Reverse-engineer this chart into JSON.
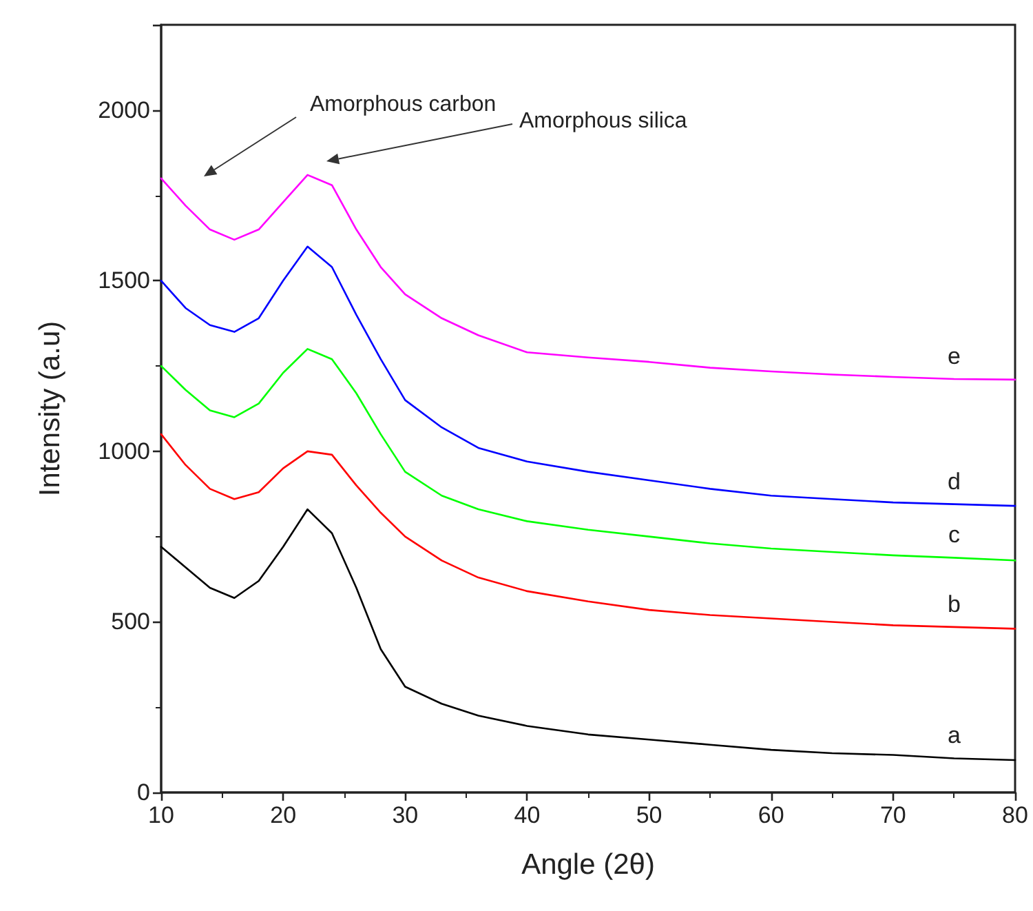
{
  "chart_data": {
    "type": "line",
    "xlabel": "Angle (2θ)",
    "ylabel": "Intensity (a.u)",
    "x": [
      10,
      12,
      14,
      16,
      18,
      20,
      22,
      24,
      26,
      28,
      30,
      33,
      36,
      40,
      45,
      50,
      55,
      60,
      65,
      70,
      75,
      80
    ],
    "series": [
      {
        "name": "a",
        "color": "#000000",
        "values": [
          720,
          660,
          600,
          570,
          620,
          720,
          830,
          760,
          600,
          420,
          310,
          260,
          225,
          195,
          170,
          155,
          140,
          125,
          115,
          110,
          100,
          95
        ]
      },
      {
        "name": "b",
        "color": "#ff0000",
        "values": [
          1050,
          960,
          890,
          860,
          880,
          950,
          1000,
          990,
          900,
          820,
          750,
          680,
          630,
          590,
          560,
          535,
          520,
          510,
          500,
          490,
          485,
          480
        ]
      },
      {
        "name": "c",
        "color": "#00ff00",
        "values": [
          1250,
          1180,
          1120,
          1100,
          1140,
          1230,
          1300,
          1270,
          1170,
          1050,
          940,
          870,
          830,
          795,
          770,
          750,
          730,
          715,
          705,
          695,
          688,
          680
        ]
      },
      {
        "name": "d",
        "color": "#0000ff",
        "values": [
          1500,
          1420,
          1370,
          1350,
          1390,
          1500,
          1600,
          1540,
          1400,
          1270,
          1150,
          1070,
          1010,
          970,
          940,
          915,
          890,
          870,
          860,
          850,
          845,
          840
        ]
      },
      {
        "name": "e",
        "color": "#ff00ff",
        "values": [
          1800,
          1720,
          1650,
          1620,
          1650,
          1730,
          1810,
          1780,
          1650,
          1540,
          1460,
          1390,
          1340,
          1290,
          1275,
          1262,
          1245,
          1234,
          1225,
          1218,
          1212,
          1210
        ]
      }
    ],
    "annotations": [
      "Amorphous carbon",
      "Amorphous silica"
    ],
    "xlim": [
      10,
      80
    ],
    "xticks": [
      10,
      20,
      30,
      40,
      50,
      60,
      70,
      80
    ],
    "ylim": [
      0,
      2250
    ],
    "yticks": [
      0,
      500,
      1000,
      1500,
      2000
    ],
    "grid": false,
    "legend": false,
    "marker": "none",
    "line_style": "solid"
  }
}
